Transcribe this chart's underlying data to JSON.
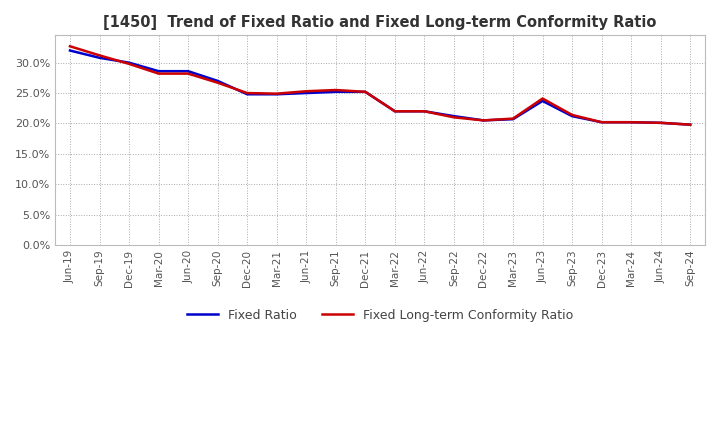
{
  "title": "[1450]  Trend of Fixed Ratio and Fixed Long-term Conformity Ratio",
  "title_fontsize": 10.5,
  "ylim": [
    0.0,
    0.345
  ],
  "x_labels": [
    "Jun-19",
    "Sep-19",
    "Dec-19",
    "Mar-20",
    "Jun-20",
    "Sep-20",
    "Dec-20",
    "Mar-21",
    "Jun-21",
    "Sep-21",
    "Dec-21",
    "Mar-22",
    "Jun-22",
    "Sep-22",
    "Dec-22",
    "Mar-23",
    "Jun-23",
    "Sep-23",
    "Dec-23",
    "Mar-24",
    "Jun-24",
    "Sep-24"
  ],
  "fixed_ratio": [
    0.32,
    0.308,
    0.3,
    0.286,
    0.286,
    0.27,
    0.248,
    0.248,
    0.25,
    0.252,
    0.252,
    0.22,
    0.22,
    0.212,
    0.205,
    0.207,
    0.237,
    0.212,
    0.202,
    0.202,
    0.201,
    0.198
  ],
  "fixed_lt_ratio": [
    0.327,
    0.312,
    0.298,
    0.282,
    0.282,
    0.267,
    0.25,
    0.249,
    0.253,
    0.255,
    0.252,
    0.22,
    0.22,
    0.21,
    0.205,
    0.208,
    0.241,
    0.214,
    0.202,
    0.202,
    0.201,
    0.198
  ],
  "line_color_fixed": "#0000cc",
  "line_color_lt": "#cc0000",
  "legend_fixed": "Fixed Ratio",
  "legend_lt": "Fixed Long-term Conformity Ratio",
  "grid_color": "#aaaaaa",
  "bg_color": "#ffffff"
}
